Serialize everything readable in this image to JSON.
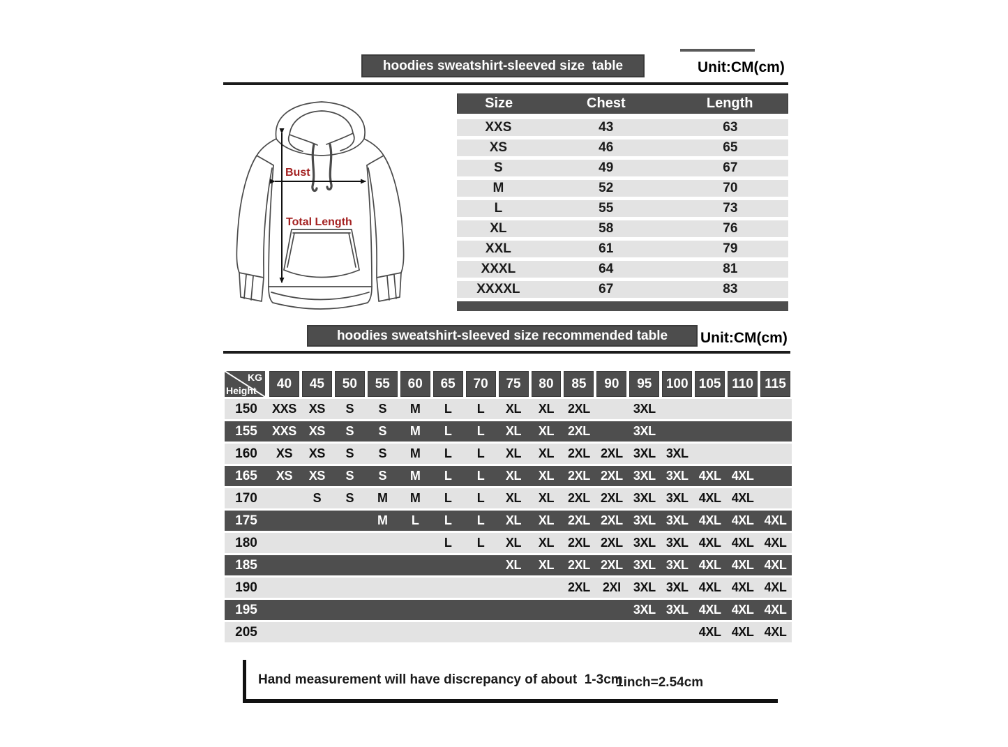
{
  "colors": {
    "bar_dark": "#4d4d4d",
    "row_light": "#e3e3e3",
    "row_dark": "#4e4e4e",
    "rule_dark": "#1b1b1b",
    "measure_label_red": "#a32020"
  },
  "size_table": {
    "title": "hoodies sweatshirt-sleeved size  table",
    "unit": "Unit:CM(cm)",
    "columns": [
      "Size",
      "Chest",
      "Length"
    ],
    "rows": [
      {
        "size": "XXS",
        "chest": "43",
        "length": "63"
      },
      {
        "size": "XS",
        "chest": "46",
        "length": "65"
      },
      {
        "size": "S",
        "chest": "49",
        "length": "67"
      },
      {
        "size": "M",
        "chest": "52",
        "length": "70"
      },
      {
        "size": "L",
        "chest": "55",
        "length": "73"
      },
      {
        "size": "XL",
        "chest": "58",
        "length": "76"
      },
      {
        "size": "XXL",
        "chest": "61",
        "length": "79"
      },
      {
        "size": "XXXL",
        "chest": "64",
        "length": "81"
      },
      {
        "size": "XXXXL",
        "chest": "67",
        "length": "83"
      }
    ]
  },
  "diagram": {
    "bust_label": "Bust",
    "total_length_label": "Total Length"
  },
  "recommended_table": {
    "title": "hoodies sweatshirt-sleeved size recommended table",
    "unit": "Unit:CM(cm)",
    "corner_top": "KG",
    "corner_bottom": "Height",
    "weights": [
      "40",
      "45",
      "50",
      "55",
      "60",
      "65",
      "70",
      "75",
      "80",
      "85",
      "90",
      "95",
      "100",
      "105",
      "110",
      "115"
    ],
    "rows": [
      {
        "height": "150",
        "cells": [
          "XXS",
          "XS",
          "S",
          "S",
          "M",
          "L",
          "L",
          "XL",
          "XL",
          "2XL",
          "",
          "3XL",
          "",
          "",
          "",
          ""
        ]
      },
      {
        "height": "155",
        "cells": [
          "XXS",
          "XS",
          "S",
          "S",
          "M",
          "L",
          "L",
          "XL",
          "XL",
          "2XL",
          "",
          "3XL",
          "",
          "",
          "",
          ""
        ]
      },
      {
        "height": "160",
        "cells": [
          "XS",
          "XS",
          "S",
          "S",
          "M",
          "L",
          "L",
          "XL",
          "XL",
          "2XL",
          "2XL",
          "3XL",
          "3XL",
          "",
          "",
          ""
        ]
      },
      {
        "height": "165",
        "cells": [
          "XS",
          "XS",
          "S",
          "S",
          "M",
          "L",
          "L",
          "XL",
          "XL",
          "2XL",
          "2XL",
          "3XL",
          "3XL",
          "4XL",
          "4XL",
          ""
        ]
      },
      {
        "height": "170",
        "cells": [
          "",
          "S",
          "S",
          "M",
          "M",
          "L",
          "L",
          "XL",
          "XL",
          "2XL",
          "2XL",
          "3XL",
          "3XL",
          "4XL",
          "4XL",
          ""
        ]
      },
      {
        "height": "175",
        "cells": [
          "",
          "",
          "",
          "M",
          "L",
          "L",
          "L",
          "XL",
          "XL",
          "2XL",
          "2XL",
          "3XL",
          "3XL",
          "4XL",
          "4XL",
          "4XL"
        ]
      },
      {
        "height": "180",
        "cells": [
          "",
          "",
          "",
          "",
          "",
          "L",
          "L",
          "XL",
          "XL",
          "2XL",
          "2XL",
          "3XL",
          "3XL",
          "4XL",
          "4XL",
          "4XL"
        ]
      },
      {
        "height": "185",
        "cells": [
          "",
          "",
          "",
          "",
          "",
          "",
          "",
          "XL",
          "XL",
          "2XL",
          "2XL",
          "3XL",
          "3XL",
          "4XL",
          "4XL",
          "4XL"
        ]
      },
      {
        "height": "190",
        "cells": [
          "",
          "",
          "",
          "",
          "",
          "",
          "",
          "",
          "",
          "2XL",
          "2XI",
          "3XL",
          "3XL",
          "4XL",
          "4XL",
          "4XL"
        ]
      },
      {
        "height": "195",
        "cells": [
          "",
          "",
          "",
          "",
          "",
          "",
          "",
          "",
          "",
          "",
          "",
          "3XL",
          "3XL",
          "4XL",
          "4XL",
          "4XL"
        ]
      },
      {
        "height": "205",
        "cells": [
          "",
          "",
          "",
          "",
          "",
          "",
          "",
          "",
          "",
          "",
          "",
          "",
          "",
          "4XL",
          "4XL",
          "4XL"
        ]
      }
    ]
  },
  "footer": {
    "note": "Hand measurement will have discrepancy of about  1-3cm",
    "conversion": "1inch=2.54cm"
  }
}
